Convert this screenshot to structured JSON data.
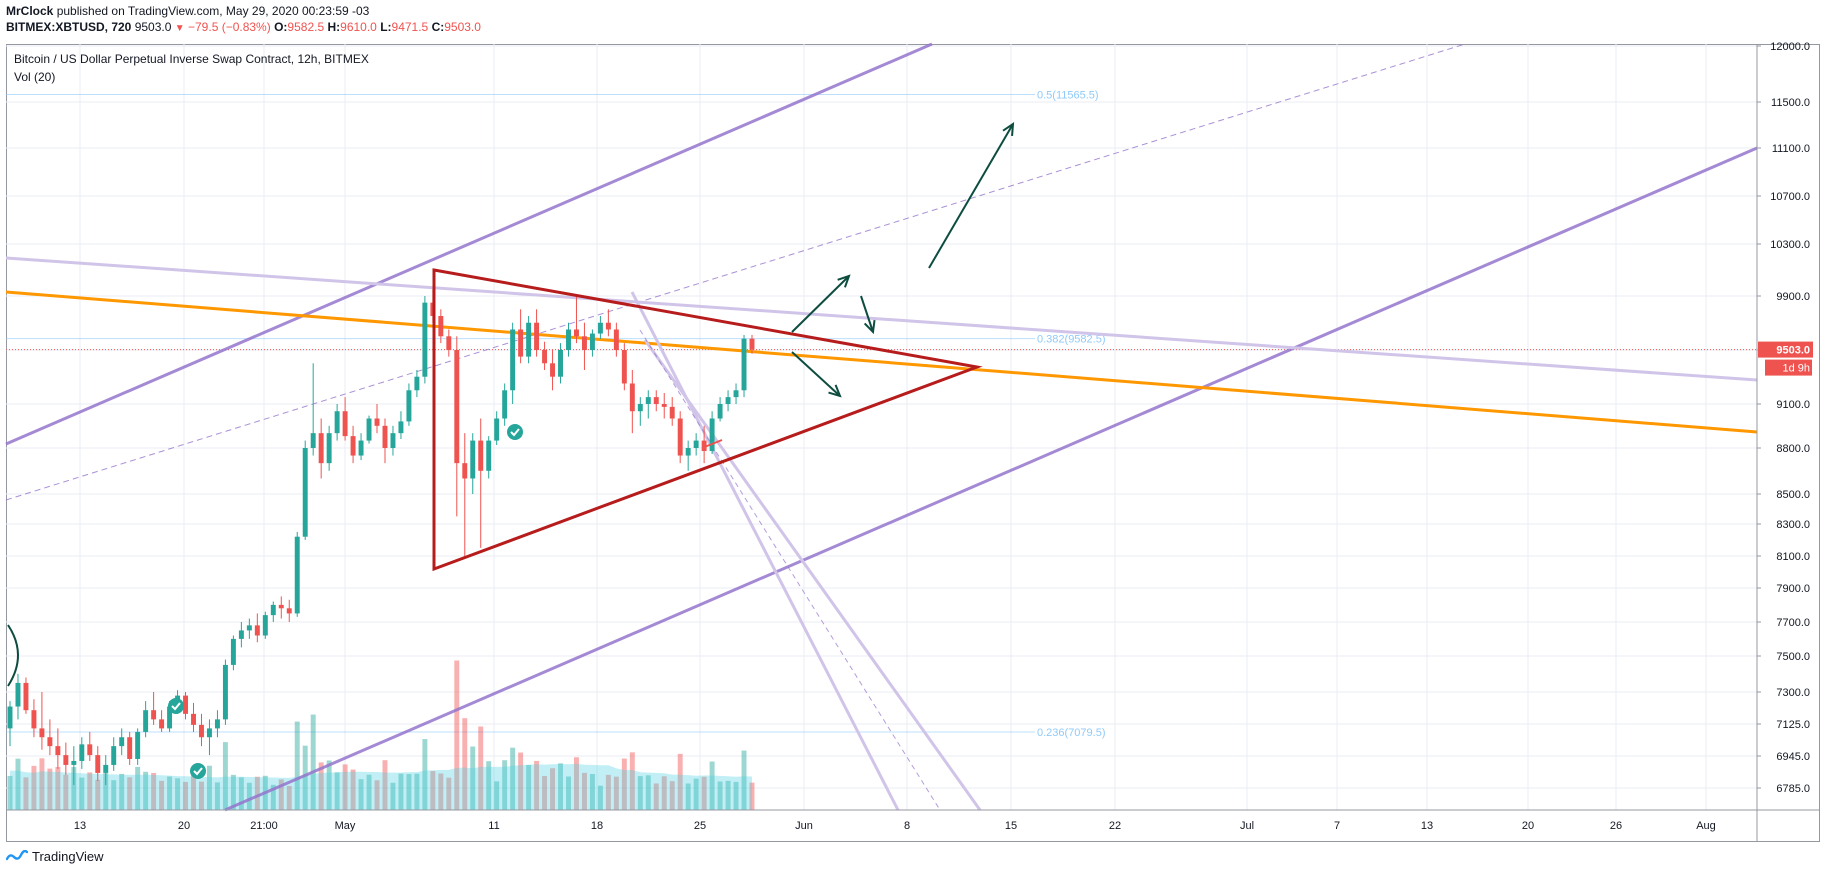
{
  "header": {
    "author": "MrClock",
    "published_text": "published on TradingView.com, May 29, 2020 00:23:59 -03",
    "symbol": "BITMEX:XBTUSD, 720",
    "last": "9503.0",
    "change": "−79.5 (−0.83%)",
    "o_label": "O:",
    "o": "9582.5",
    "h_label": "H:",
    "h": "9610.0",
    "l_label": "L:",
    "l": "9471.5",
    "c_label": "C:",
    "c": "9503.0"
  },
  "chart_title": "Bitcoin / US Dollar Perpetual Inverse Swap Contract, 12h, BITMEX",
  "volume_label": "Vol (20)",
  "footer": {
    "brand": "TradingView"
  },
  "colors": {
    "up": "#26a69a",
    "down": "#ef5350",
    "triangle": "#b71c1c",
    "orange": "#ff9800",
    "purple": "#9575cd",
    "lavender": "#d1c4e9",
    "arrow": "#0d4d40",
    "fib": "#90caf9"
  },
  "chart_data": {
    "type": "candlestick",
    "title": "Bitcoin / US Dollar Perpetual Inverse Swap Contract, 12h, BITMEX",
    "interval": "12h",
    "x_ticks": [
      "13",
      "20",
      "21:00",
      "May",
      "11",
      "18",
      "25",
      "Jun",
      "8",
      "15",
      "22",
      "Jul",
      "7",
      "13",
      "20",
      "26",
      "Aug"
    ],
    "y_ticks": [
      "6785.0",
      "6945.0",
      "7125.0",
      "7300.0",
      "7500.0",
      "7700.0",
      "7900.0",
      "8100.0",
      "8300.0",
      "8500.0",
      "8800.0",
      "9100.0",
      "9500.0",
      "9900.0",
      "10300.0",
      "10700.0",
      "11100.0",
      "11500.0",
      "12000.0"
    ],
    "y_scale": "log",
    "ylim": [
      6700,
      12000
    ],
    "last_price": "9503.0",
    "countdown": "1d 9h",
    "fib_levels": [
      {
        "label": "0.5(11565.5)",
        "value": 11565.5
      },
      {
        "label": "0.382(9582.5)",
        "value": 9582.5
      },
      {
        "label": "0.236(7079.5)",
        "value": 7079.5
      }
    ],
    "candles": [
      [
        7100,
        7250,
        7000,
        7220
      ],
      [
        7220,
        7400,
        7150,
        7350
      ],
      [
        7350,
        7380,
        7180,
        7200
      ],
      [
        7200,
        7260,
        7050,
        7100
      ],
      [
        7100,
        7300,
        6980,
        7050
      ],
      [
        7050,
        7150,
        6950,
        7000
      ],
      [
        7000,
        7100,
        6880,
        6950
      ],
      [
        6950,
        7020,
        6850,
        6900
      ],
      [
        6900,
        7000,
        6800,
        6920
      ],
      [
        6920,
        7050,
        6880,
        7010
      ],
      [
        7010,
        7080,
        6920,
        6950
      ],
      [
        6950,
        7000,
        6820,
        6860
      ],
      [
        6860,
        6950,
        6800,
        6900
      ],
      [
        6900,
        7050,
        6870,
        7000
      ],
      [
        7000,
        7100,
        6950,
        7050
      ],
      [
        7050,
        7080,
        6900,
        6930
      ],
      [
        6930,
        7100,
        6900,
        7080
      ],
      [
        7080,
        7250,
        7050,
        7200
      ],
      [
        7200,
        7300,
        7120,
        7150
      ],
      [
        7150,
        7200,
        7080,
        7100
      ],
      [
        7100,
        7250,
        7080,
        7220
      ],
      [
        7220,
        7310,
        7180,
        7280
      ],
      [
        7280,
        7300,
        7150,
        7180
      ],
      [
        7180,
        7240,
        7080,
        7120
      ],
      [
        7120,
        7180,
        7000,
        7050
      ],
      [
        7050,
        7150,
        6950,
        7100
      ],
      [
        7100,
        7200,
        7050,
        7150
      ],
      [
        7150,
        7480,
        7120,
        7450
      ],
      [
        7450,
        7620,
        7420,
        7600
      ],
      [
        7600,
        7700,
        7550,
        7650
      ],
      [
        7650,
        7720,
        7600,
        7680
      ],
      [
        7680,
        7750,
        7580,
        7620
      ],
      [
        7620,
        7760,
        7600,
        7740
      ],
      [
        7740,
        7820,
        7700,
        7800
      ],
      [
        7800,
        7850,
        7720,
        7780
      ],
      [
        7780,
        7830,
        7700,
        7750
      ],
      [
        7750,
        8250,
        7730,
        8220
      ],
      [
        8220,
        8850,
        8200,
        8800
      ],
      [
        8800,
        9400,
        8750,
        8900
      ],
      [
        8900,
        9000,
        8600,
        8700
      ],
      [
        8700,
        8950,
        8650,
        8900
      ],
      [
        8900,
        9100,
        8850,
        9050
      ],
      [
        9050,
        9150,
        8850,
        8880
      ],
      [
        8880,
        8950,
        8700,
        8750
      ],
      [
        8750,
        8900,
        8720,
        8850
      ],
      [
        8850,
        9020,
        8830,
        9000
      ],
      [
        9000,
        9100,
        8900,
        8950
      ],
      [
        8950,
        9000,
        8700,
        8800
      ],
      [
        8800,
        8950,
        8750,
        8900
      ],
      [
        8900,
        9050,
        8860,
        8980
      ],
      [
        8980,
        9250,
        8950,
        9200
      ],
      [
        9200,
        9350,
        9150,
        9300
      ],
      [
        9300,
        9900,
        9250,
        9850
      ],
      [
        9850,
        9950,
        9700,
        9750
      ],
      [
        9750,
        9800,
        9550,
        9600
      ],
      [
        9600,
        9650,
        9450,
        9500
      ],
      [
        9500,
        9600,
        8350,
        8700
      ],
      [
        8700,
        8900,
        8100,
        8600
      ],
      [
        8600,
        8900,
        8500,
        8850
      ],
      [
        8850,
        9000,
        8150,
        8650
      ],
      [
        8650,
        8880,
        8600,
        8850
      ],
      [
        8850,
        9050,
        8820,
        9000
      ],
      [
        9000,
        9250,
        8950,
        9200
      ],
      [
        9200,
        9700,
        9100,
        9650
      ],
      [
        9650,
        9800,
        9400,
        9450
      ],
      [
        9450,
        9750,
        9400,
        9700
      ],
      [
        9700,
        9800,
        9450,
        9500
      ],
      [
        9500,
        9560,
        9350,
        9400
      ],
      [
        9400,
        9500,
        9200,
        9300
      ],
      [
        9300,
        9550,
        9250,
        9500
      ],
      [
        9500,
        9700,
        9450,
        9650
      ],
      [
        9650,
        9900,
        9550,
        9600
      ],
      [
        9600,
        9700,
        9350,
        9500
      ],
      [
        9500,
        9650,
        9450,
        9620
      ],
      [
        9620,
        9750,
        9580,
        9700
      ],
      [
        9700,
        9800,
        9600,
        9650
      ],
      [
        9650,
        9700,
        9450,
        9500
      ],
      [
        9500,
        9550,
        9200,
        9250
      ],
      [
        9250,
        9350,
        8900,
        9050
      ],
      [
        9050,
        9150,
        8950,
        9100
      ],
      [
        9100,
        9200,
        9000,
        9150
      ],
      [
        9150,
        9200,
        9050,
        9100
      ],
      [
        9100,
        9180,
        9000,
        9080
      ],
      [
        9080,
        9150,
        8950,
        9000
      ],
      [
        9000,
        9050,
        8700,
        8750
      ],
      [
        8750,
        8850,
        8650,
        8800
      ],
      [
        8800,
        8900,
        8750,
        8850
      ],
      [
        8850,
        8950,
        8700,
        8780
      ],
      [
        8780,
        9050,
        8760,
        9000
      ],
      [
        9000,
        9150,
        8980,
        9100
      ],
      [
        9100,
        9200,
        9050,
        9150
      ],
      [
        9150,
        9250,
        9100,
        9200
      ],
      [
        9200,
        9610,
        9150,
        9582.5
      ],
      [
        9582.5,
        9610,
        9471.5,
        9503
      ]
    ]
  }
}
